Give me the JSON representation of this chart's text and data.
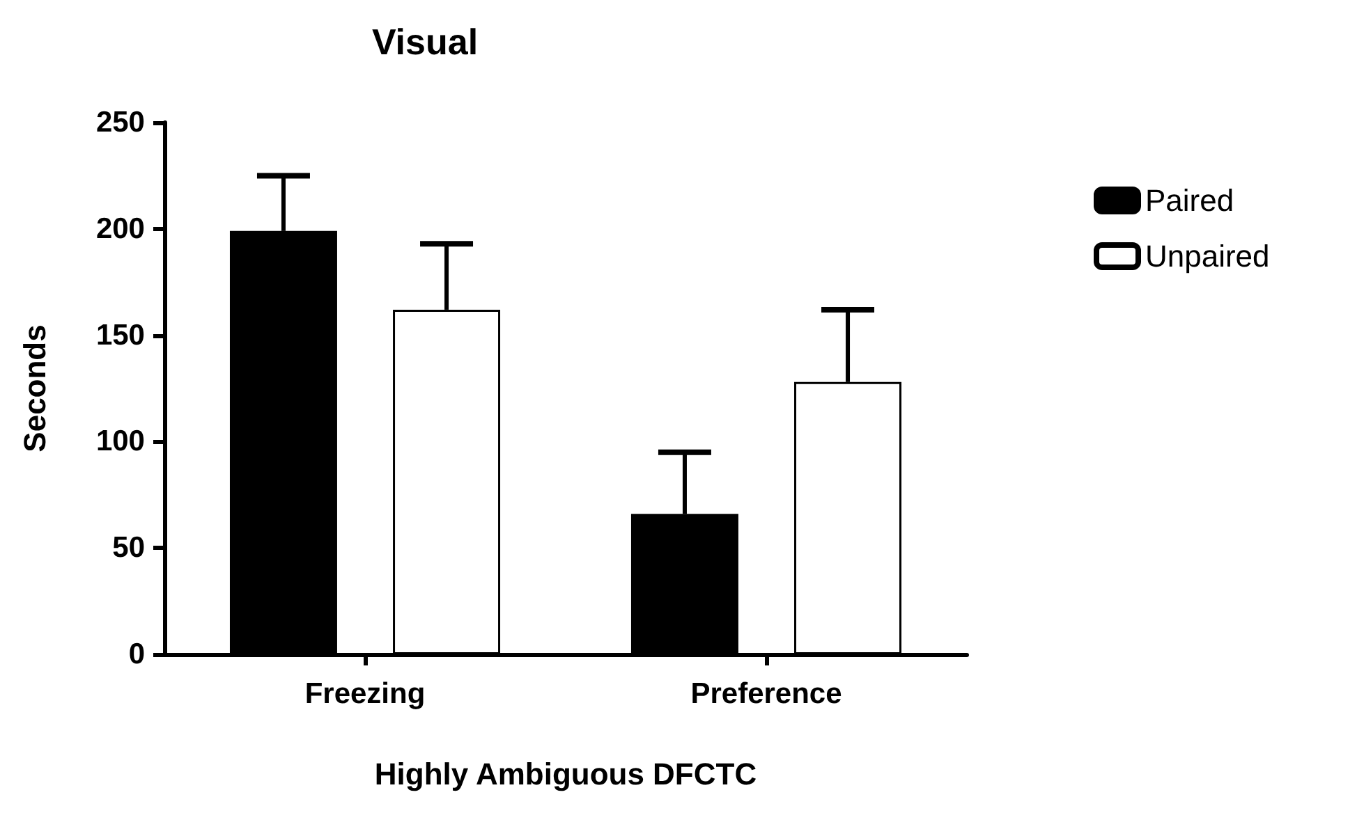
{
  "chart_data": {
    "type": "bar",
    "title": "Visual",
    "xlabel": "Highly Ambiguous DFCTC",
    "ylabel": "Seconds",
    "categories": [
      "Freezing",
      "Preference"
    ],
    "series": [
      {
        "name": "Paired",
        "color": "#000000",
        "values": [
          199,
          66
        ],
        "errors": [
          [
            199,
            225
          ],
          [
            66,
            95
          ]
        ]
      },
      {
        "name": "Unpaired",
        "color": "#ffffff",
        "values": [
          162,
          128
        ],
        "errors": [
          [
            162,
            193
          ],
          [
            128,
            162
          ]
        ]
      }
    ],
    "ylim": [
      0,
      250
    ],
    "yticks": [
      0,
      50,
      100,
      150,
      200,
      250
    ],
    "grid": false,
    "legend": "top right"
  }
}
